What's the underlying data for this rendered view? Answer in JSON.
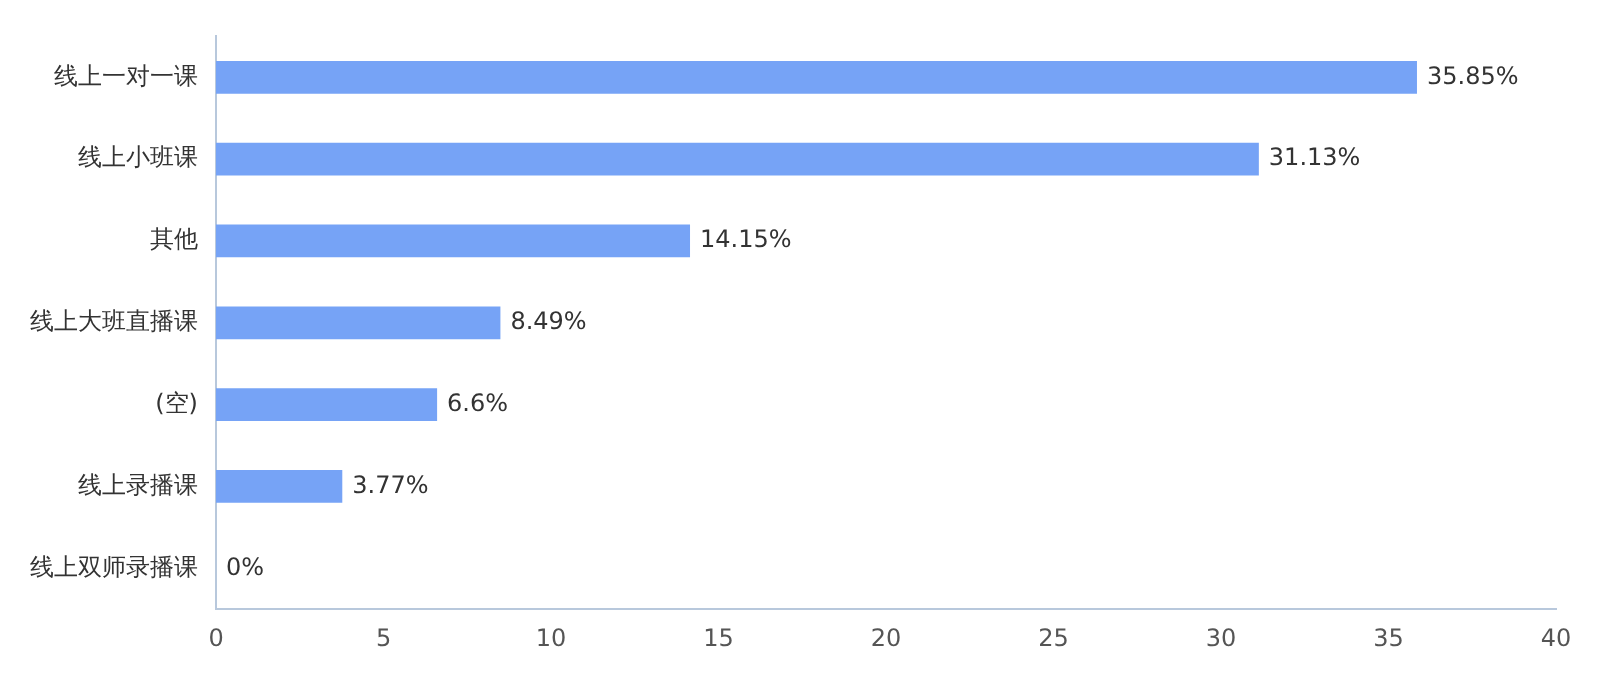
{
  "chart_data": {
    "type": "bar",
    "orientation": "horizontal",
    "categories": [
      "线上一对一课",
      "线上小班课",
      "其他",
      "线上大班直播课",
      "(空)",
      "线上录播课",
      "线上双师录播课"
    ],
    "values": [
      35.85,
      31.13,
      14.15,
      8.49,
      6.6,
      3.77,
      0
    ],
    "value_labels": [
      "35.85%",
      "31.13%",
      "14.15%",
      "8.49%",
      "6.6%",
      "3.77%",
      "0%"
    ],
    "color": "#76a3f6",
    "xlim": [
      0,
      40
    ],
    "xticks": [
      0,
      5,
      10,
      15,
      20,
      25,
      30,
      35,
      40
    ],
    "grid": false,
    "legend": false
  }
}
